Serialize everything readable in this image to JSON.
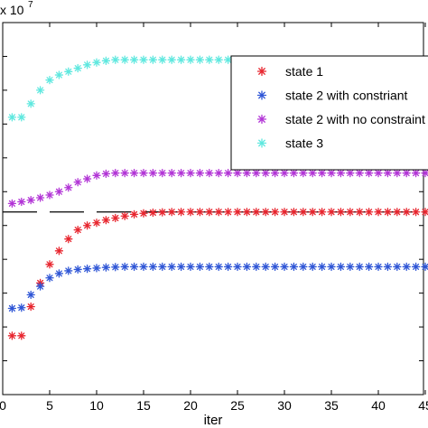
{
  "chart_data": {
    "type": "scatter",
    "title": "",
    "xlabel": "iter",
    "ylabel": "",
    "exponent_label": "x 10",
    "exponent_power": "7",
    "xlim": [
      0,
      46
    ],
    "ylim": [
      0,
      11
    ],
    "x_ticks": [
      0,
      5,
      10,
      15,
      20,
      25,
      30,
      35,
      40,
      45
    ],
    "x_tick_labels": [
      "0",
      "5",
      "10",
      "15",
      "20",
      "25",
      "30",
      "35",
      "40",
      "45"
    ],
    "y_ticks": [
      1,
      2,
      3,
      4,
      5,
      6,
      7,
      8,
      9,
      10
    ],
    "grid": false,
    "legend_position": "top-right",
    "reference_line": {
      "style": "dashed",
      "color": "#000000",
      "y": 5.4
    },
    "series": [
      {
        "name": "state 1",
        "color": "#e8262f",
        "marker": "asterisk",
        "x": [
          1,
          2,
          3,
          4,
          5,
          6,
          7,
          8,
          9,
          10,
          11,
          12,
          13,
          14,
          15,
          16,
          17,
          18,
          19,
          20,
          21,
          22,
          23,
          24,
          25,
          26,
          27,
          28,
          29,
          30,
          31,
          32,
          33,
          34,
          35,
          36,
          37,
          38,
          39,
          40,
          41,
          42,
          43,
          44,
          45,
          46
        ],
        "y": [
          1.74,
          1.74,
          2.6,
          3.3,
          3.85,
          4.25,
          4.6,
          4.87,
          5.0,
          5.08,
          5.16,
          5.22,
          5.28,
          5.33,
          5.36,
          5.38,
          5.39,
          5.4,
          5.4,
          5.4,
          5.4,
          5.4,
          5.4,
          5.4,
          5.4,
          5.4,
          5.4,
          5.4,
          5.4,
          5.4,
          5.4,
          5.4,
          5.4,
          5.4,
          5.4,
          5.4,
          5.4,
          5.4,
          5.4,
          5.4,
          5.4,
          5.4,
          5.4,
          5.4,
          5.4,
          5.4
        ]
      },
      {
        "name": "state 2 with constriant",
        "color": "#2f56d6",
        "marker": "asterisk",
        "x": [
          1,
          2,
          3,
          4,
          5,
          6,
          7,
          8,
          9,
          10,
          11,
          12,
          13,
          14,
          15,
          16,
          17,
          18,
          19,
          20,
          21,
          22,
          23,
          24,
          25,
          26,
          27,
          28,
          29,
          30,
          31,
          32,
          33,
          34,
          35,
          36,
          37,
          38,
          39,
          40,
          41,
          42,
          43,
          44,
          45,
          46
        ],
        "y": [
          2.55,
          2.57,
          2.95,
          3.2,
          3.45,
          3.58,
          3.66,
          3.7,
          3.72,
          3.74,
          3.76,
          3.77,
          3.78,
          3.78,
          3.78,
          3.78,
          3.78,
          3.78,
          3.78,
          3.78,
          3.78,
          3.78,
          3.78,
          3.78,
          3.78,
          3.78,
          3.78,
          3.78,
          3.78,
          3.78,
          3.78,
          3.78,
          3.78,
          3.78,
          3.78,
          3.78,
          3.78,
          3.78,
          3.78,
          3.78,
          3.78,
          3.78,
          3.78,
          3.78,
          3.78,
          3.78
        ]
      },
      {
        "name": "state 2 with no constraint",
        "color": "#b235d6",
        "marker": "asterisk",
        "x": [
          1,
          2,
          3,
          4,
          5,
          6,
          7,
          8,
          9,
          10,
          11,
          12,
          13,
          14,
          15,
          16,
          17,
          18,
          19,
          20,
          21,
          22,
          23,
          24,
          25,
          26,
          27,
          28,
          29,
          30,
          31,
          32,
          33,
          34,
          35,
          36,
          37,
          38,
          39,
          40,
          41,
          42,
          43,
          44,
          45,
          46
        ],
        "y": [
          5.65,
          5.7,
          5.75,
          5.82,
          5.9,
          6.0,
          6.12,
          6.28,
          6.38,
          6.48,
          6.53,
          6.55,
          6.55,
          6.55,
          6.55,
          6.55,
          6.55,
          6.55,
          6.55,
          6.55,
          6.55,
          6.55,
          6.55,
          6.55,
          6.55,
          6.55,
          6.55,
          6.55,
          6.55,
          6.55,
          6.55,
          6.55,
          6.55,
          6.55,
          6.55,
          6.55,
          6.55,
          6.55,
          6.55,
          6.55,
          6.55,
          6.55,
          6.55,
          6.55,
          6.55,
          6.55
        ]
      },
      {
        "name": "state 3",
        "color": "#5fe8df",
        "marker": "asterisk",
        "x": [
          1,
          2,
          3,
          4,
          5,
          6,
          7,
          8,
          9,
          10,
          11,
          12,
          13,
          14,
          15,
          16,
          17,
          18,
          19,
          20,
          21,
          22,
          23,
          24,
          25,
          26,
          27,
          28,
          29,
          30,
          31,
          32,
          33,
          34,
          35,
          36,
          37,
          38,
          39,
          40,
          41,
          42,
          43,
          44,
          45,
          46
        ],
        "y": [
          8.2,
          8.2,
          8.6,
          9.0,
          9.3,
          9.45,
          9.55,
          9.65,
          9.75,
          9.82,
          9.87,
          9.9,
          9.9,
          9.9,
          9.9,
          9.9,
          9.9,
          9.9,
          9.9,
          9.9,
          9.9,
          9.9,
          9.9,
          9.9,
          9.9,
          9.9,
          9.9,
          9.9,
          9.9,
          9.9,
          9.9,
          9.9,
          9.9,
          9.9,
          9.9,
          9.9,
          9.9,
          9.9,
          9.9,
          9.9,
          9.9,
          9.9,
          9.9,
          9.9,
          9.9,
          9.9
        ]
      }
    ]
  }
}
